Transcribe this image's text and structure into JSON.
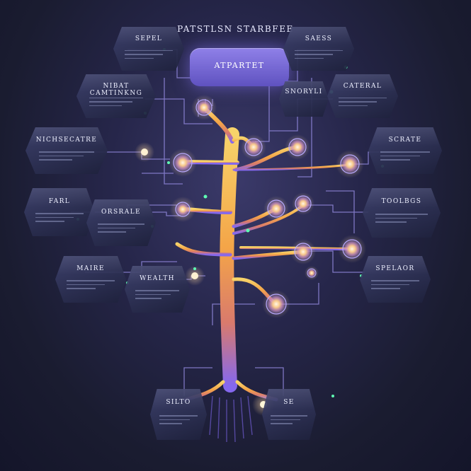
{
  "title": "PATSTLSN STARBFEE",
  "central_node": "ATPARTET",
  "nodes": [
    {
      "label": "SEPEL"
    },
    {
      "label": "SAESS"
    },
    {
      "label": "NIBAT CAMTINKNG"
    },
    {
      "label": "SNORYLI"
    },
    {
      "label": "CATERAL"
    },
    {
      "label": "NICHSECATRE"
    },
    {
      "label": "SCRATE"
    },
    {
      "label": "FARL"
    },
    {
      "label": "ORSRALE"
    },
    {
      "label": "TOOLBGS"
    },
    {
      "label": "MAIRE"
    },
    {
      "label": "WEALTH"
    },
    {
      "label": "SPELAOR"
    },
    {
      "label": "SILTO"
    },
    {
      "label": "SE"
    }
  ],
  "colors": {
    "trunk_top": "#f4c35a",
    "trunk_mid": "#f08a3a",
    "trunk_bottom": "#8b6ff0",
    "circuit": "#8e85d8",
    "glow": "#ffd9a0",
    "led": "#5fffb4"
  }
}
